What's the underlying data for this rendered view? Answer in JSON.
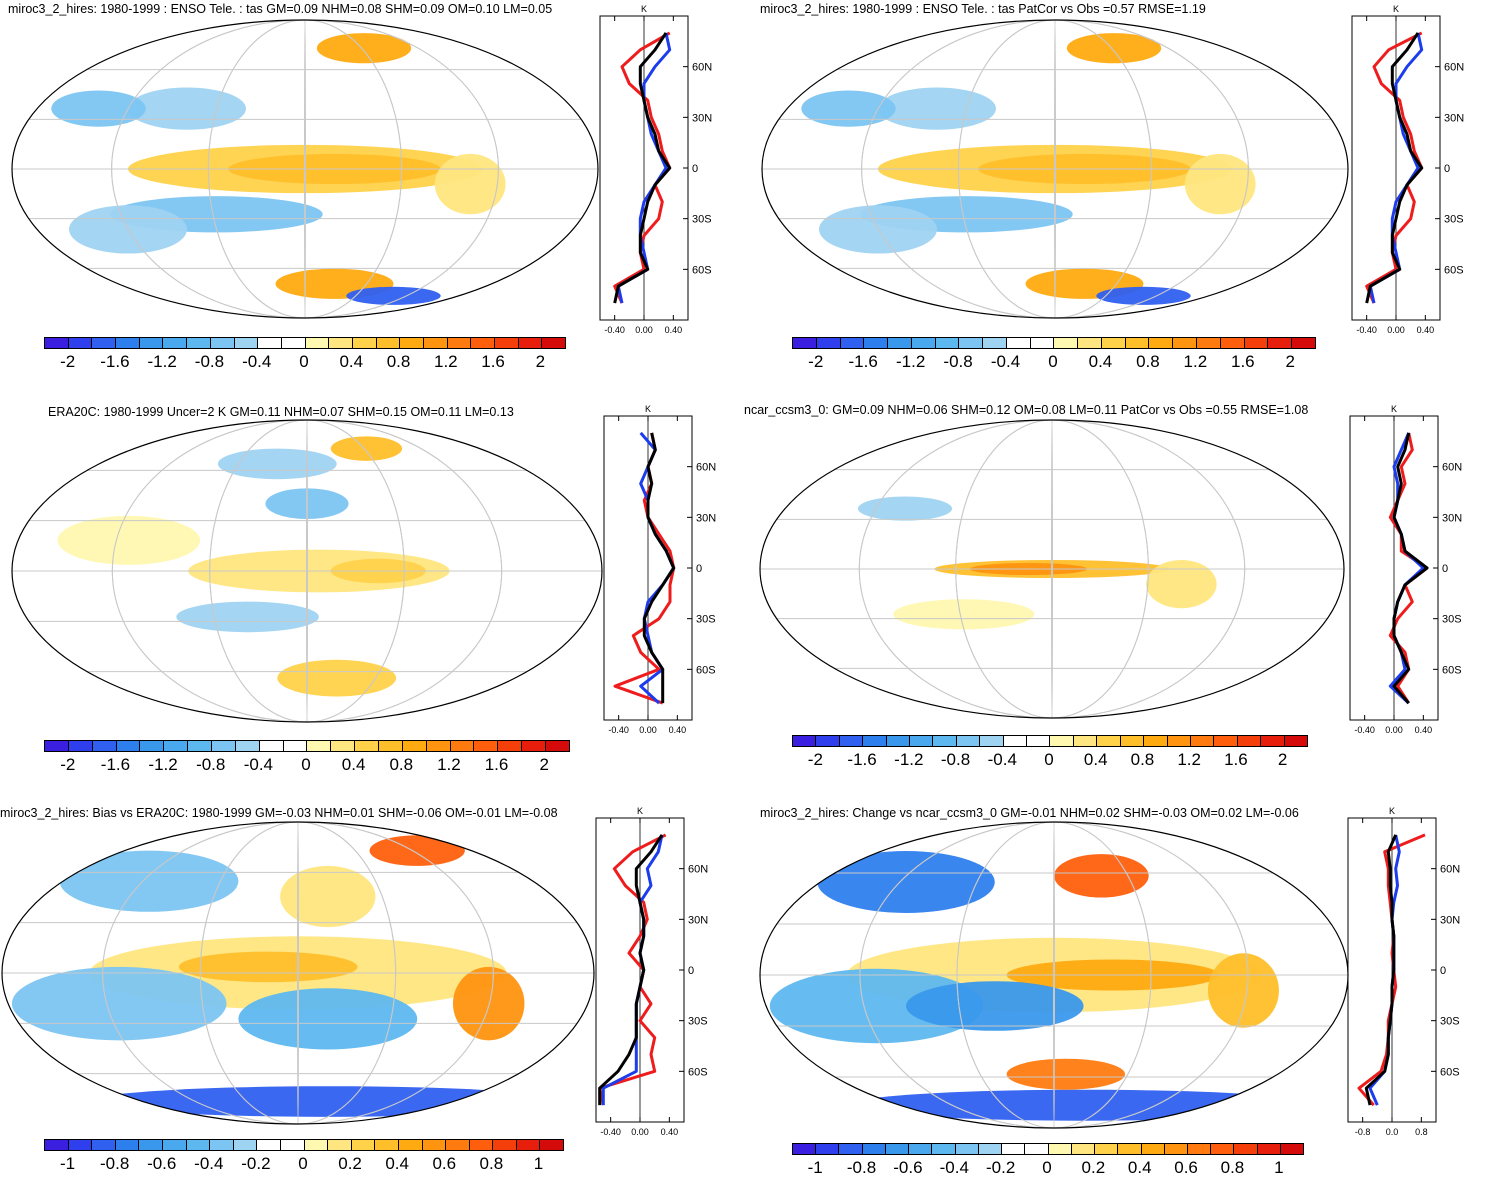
{
  "palettes": {
    "temp": [
      "#3a1fe0",
      "#2f3fee",
      "#2f60f0",
      "#2e7fee",
      "#3a98ec",
      "#4aa9ee",
      "#5eb8f0",
      "#7cc5f2",
      "#9fd3f2",
      "#ffffff",
      "#ffffff",
      "#fff8b0",
      "#ffe680",
      "#ffd24a",
      "#ffbf2a",
      "#ffaa10",
      "#ff9410",
      "#ff7b10",
      "#ff5f0d",
      "#f43f0b",
      "#e61e0b",
      "#d50a0b"
    ]
  },
  "chart_data": [
    {
      "type": "map+zonal-profile",
      "title": "miroc3_2_hires: 1980-1999 : ENSO Tele. : tas GM=0.09 NHM=0.08 SHM=0.09 OM=0.10 LM=0.05",
      "colorbar_labels": [
        "-2",
        "-1.6",
        "-1.2",
        "-0.8",
        "-0.4",
        "0",
        "0.4",
        "0.8",
        "1.2",
        "1.6",
        "2"
      ],
      "profile": {
        "unit": "K",
        "xticks": [
          "-0.40",
          "0.00",
          "0.40"
        ],
        "xlim": [
          -0.6,
          0.6
        ],
        "lat_labels": [
          "60N",
          "30N",
          "0",
          "30S",
          "60S"
        ]
      },
      "series": [
        {
          "name": "red",
          "color": "#ee1c1c",
          "lat": [
            80,
            70,
            60,
            50,
            40,
            30,
            20,
            10,
            0,
            -10,
            -20,
            -30,
            -40,
            -50,
            -60,
            -70,
            -80
          ],
          "values": [
            0.35,
            -0.05,
            -0.3,
            -0.2,
            0.05,
            0.1,
            0.2,
            0.25,
            0.35,
            0.15,
            0.25,
            0.2,
            0.0,
            -0.05,
            0.0,
            -0.4,
            -0.3
          ]
        },
        {
          "name": "blue",
          "color": "#1c3cee",
          "lat": [
            80,
            70,
            60,
            50,
            40,
            30,
            20,
            10,
            0,
            -10,
            -20,
            -30,
            -40,
            -50,
            -60,
            -70,
            -80
          ],
          "values": [
            0.3,
            0.35,
            0.15,
            0.0,
            0.0,
            0.05,
            0.1,
            0.2,
            0.3,
            0.15,
            0.0,
            -0.05,
            -0.05,
            0.0,
            0.05,
            -0.35,
            -0.3
          ]
        },
        {
          "name": "black",
          "color": "#000000",
          "lat": [
            80,
            70,
            60,
            50,
            40,
            30,
            20,
            10,
            0,
            -10,
            -20,
            -30,
            -40,
            -50,
            -60,
            -70,
            -80
          ],
          "values": [
            0.3,
            0.15,
            -0.05,
            -0.05,
            0.0,
            0.05,
            0.15,
            0.2,
            0.35,
            0.15,
            0.05,
            0.0,
            -0.05,
            -0.05,
            0.05,
            -0.35,
            -0.4
          ]
        }
      ]
    },
    {
      "type": "map+zonal-profile",
      "title": "miroc3_2_hires: 1980-1999 : ENSO Tele. : tas PatCor vs Obs =0.57 RMSE=1.19",
      "colorbar_labels": [
        "-2",
        "-1.6",
        "-1.2",
        "-0.8",
        "-0.4",
        "0",
        "0.4",
        "0.8",
        "1.2",
        "1.6",
        "2"
      ],
      "profile": {
        "unit": "K",
        "xticks": [
          "-0.40",
          "0.00",
          "0.40"
        ],
        "xlim": [
          -0.6,
          0.6
        ],
        "lat_labels": [
          "60N",
          "30N",
          "0",
          "30S",
          "60S"
        ]
      },
      "series": [
        {
          "name": "red",
          "color": "#ee1c1c",
          "lat": [
            80,
            70,
            60,
            50,
            40,
            30,
            20,
            10,
            0,
            -10,
            -20,
            -30,
            -40,
            -50,
            -60,
            -70,
            -80
          ],
          "values": [
            0.35,
            -0.1,
            -0.3,
            -0.2,
            0.05,
            0.1,
            0.2,
            0.25,
            0.35,
            0.15,
            0.25,
            0.2,
            0.0,
            -0.05,
            0.0,
            -0.4,
            -0.3
          ]
        },
        {
          "name": "blue",
          "color": "#1c3cee",
          "lat": [
            80,
            70,
            60,
            50,
            40,
            30,
            20,
            10,
            0,
            -10,
            -20,
            -30,
            -40,
            -50,
            -60,
            -70,
            -80
          ],
          "values": [
            0.3,
            0.35,
            0.15,
            0.0,
            0.0,
            0.05,
            0.1,
            0.2,
            0.3,
            0.15,
            0.0,
            -0.05,
            -0.05,
            0.0,
            0.05,
            -0.35,
            -0.3
          ]
        },
        {
          "name": "black",
          "color": "#000000",
          "lat": [
            80,
            70,
            60,
            50,
            40,
            30,
            20,
            10,
            0,
            -10,
            -20,
            -30,
            -40,
            -50,
            -60,
            -70,
            -80
          ],
          "values": [
            0.3,
            0.15,
            -0.05,
            -0.05,
            0.0,
            0.05,
            0.15,
            0.2,
            0.35,
            0.15,
            0.05,
            0.0,
            -0.05,
            -0.05,
            0.05,
            -0.35,
            -0.4
          ]
        }
      ]
    },
    {
      "type": "map+zonal-profile",
      "title": "ERA20C: 1980-1999 Uncer=2 K GM=0.11 NHM=0.07 SHM=0.15 OM=0.11 LM=0.13",
      "colorbar_labels": [
        "-2",
        "-1.6",
        "-1.2",
        "-0.8",
        "-0.4",
        "0",
        "0.4",
        "0.8",
        "1.2",
        "1.6",
        "2"
      ],
      "profile": {
        "unit": "K",
        "xticks": [
          "-0.40",
          "0.00",
          "0.40"
        ],
        "xlim": [
          -0.6,
          0.6
        ],
        "lat_labels": [
          "60N",
          "30N",
          "0",
          "30S",
          "60S"
        ]
      },
      "series": [
        {
          "name": "red",
          "color": "#ee1c1c",
          "lat": [
            80,
            70,
            60,
            50,
            40,
            30,
            20,
            10,
            0,
            -10,
            -20,
            -30,
            -40,
            -50,
            -60,
            -70,
            -80
          ],
          "values": [
            0.05,
            0.1,
            0.0,
            0.05,
            -0.05,
            0.0,
            0.15,
            0.3,
            0.35,
            0.3,
            0.3,
            0.15,
            -0.2,
            -0.1,
            0.15,
            -0.45,
            0.2
          ]
        },
        {
          "name": "blue",
          "color": "#1c3cee",
          "lat": [
            80,
            70,
            60,
            50,
            40,
            30,
            20,
            10,
            0,
            -10,
            -20,
            -30,
            -40,
            -50,
            -60,
            -70,
            -80
          ],
          "values": [
            -0.1,
            0.1,
            0.0,
            -0.1,
            0.0,
            0.0,
            0.1,
            0.25,
            0.35,
            0.2,
            0.0,
            -0.05,
            0.0,
            0.05,
            0.2,
            -0.1,
            0.15
          ]
        },
        {
          "name": "black",
          "color": "#000000",
          "lat": [
            80,
            70,
            60,
            50,
            40,
            30,
            20,
            10,
            0,
            -10,
            -20,
            -30,
            -40,
            -50,
            -60,
            -70,
            -80
          ],
          "values": [
            0.05,
            0.1,
            0.0,
            0.05,
            0.0,
            0.0,
            0.1,
            0.25,
            0.35,
            0.2,
            0.05,
            -0.05,
            -0.05,
            0.05,
            0.2,
            0.2,
            0.2
          ]
        }
      ]
    },
    {
      "type": "map+zonal-profile",
      "title": "ncar_ccsm3_0: GM=0.09 NHM=0.06 SHM=0.12 OM=0.08 LM=0.11 PatCor vs Obs =0.55 RMSE=1.08",
      "colorbar_labels": [
        "-2",
        "-1.6",
        "-1.2",
        "-0.8",
        "-0.4",
        "0",
        "0.4",
        "0.8",
        "1.2",
        "1.6",
        "2"
      ],
      "profile": {
        "unit": "K",
        "xticks": [
          "-0.40",
          "0.00",
          "0.40"
        ],
        "xlim": [
          -0.6,
          0.6
        ],
        "lat_labels": [
          "60N",
          "30N",
          "0",
          "30S",
          "60S"
        ]
      },
      "series": [
        {
          "name": "red",
          "color": "#ee1c1c",
          "lat": [
            80,
            70,
            60,
            50,
            40,
            30,
            20,
            10,
            0,
            -10,
            -20,
            -30,
            -40,
            -50,
            -60,
            -70,
            -80
          ],
          "values": [
            0.2,
            0.25,
            0.1,
            0.15,
            0.05,
            -0.05,
            0.1,
            0.1,
            0.45,
            0.15,
            0.25,
            0.05,
            -0.05,
            0.15,
            0.2,
            0.05,
            0.2
          ]
        },
        {
          "name": "blue",
          "color": "#1c3cee",
          "lat": [
            80,
            70,
            60,
            50,
            40,
            30,
            20,
            10,
            0,
            -10,
            -20,
            -30,
            -40,
            -50,
            -60,
            -70,
            -80
          ],
          "values": [
            0.2,
            0.1,
            0.0,
            0.05,
            0.05,
            0.0,
            0.1,
            0.15,
            0.4,
            0.15,
            0.05,
            0.0,
            0.0,
            0.1,
            0.15,
            -0.05,
            0.2
          ]
        },
        {
          "name": "black",
          "color": "#000000",
          "lat": [
            80,
            70,
            60,
            50,
            40,
            30,
            20,
            10,
            0,
            -10,
            -20,
            -30,
            -40,
            -50,
            -60,
            -70,
            -80
          ],
          "values": [
            0.2,
            0.15,
            0.05,
            0.1,
            0.05,
            0.0,
            0.1,
            0.15,
            0.45,
            0.15,
            0.05,
            0.0,
            0.0,
            0.1,
            0.2,
            0.0,
            0.2
          ]
        }
      ]
    },
    {
      "type": "map+zonal-profile",
      "title": "miroc3_2_hires: Bias vs ERA20C: 1980-1999 GM=-0.03 NHM=0.01 SHM=-0.06 OM=-0.01 LM=-0.08",
      "colorbar_labels": [
        "-1",
        "-0.8",
        "-0.6",
        "-0.4",
        "-0.2",
        "0",
        "0.2",
        "0.4",
        "0.6",
        "0.8",
        "1"
      ],
      "profile": {
        "unit": "K",
        "xticks": [
          "-0.40",
          "0.00",
          "0.40"
        ],
        "xlim": [
          -0.6,
          0.6
        ],
        "lat_labels": [
          "60N",
          "30N",
          "0",
          "30S",
          "60S"
        ]
      },
      "series": [
        {
          "name": "red",
          "color": "#ee1c1c",
          "lat": [
            80,
            70,
            60,
            50,
            40,
            30,
            20,
            10,
            0,
            -10,
            -20,
            -30,
            -40,
            -50,
            -60,
            -70,
            -80
          ],
          "values": [
            0.35,
            -0.1,
            -0.35,
            -0.2,
            0.05,
            0.1,
            0.0,
            -0.15,
            0.05,
            0.0,
            0.15,
            0.0,
            0.2,
            0.15,
            0.2,
            -0.55,
            -0.5
          ]
        },
        {
          "name": "blue",
          "color": "#1c3cee",
          "lat": [
            80,
            70,
            60,
            50,
            40,
            30,
            20,
            10,
            0,
            -10,
            -20,
            -30,
            -40,
            -50,
            -60,
            -70,
            -80
          ],
          "values": [
            0.3,
            0.25,
            0.1,
            0.15,
            0.0,
            0.05,
            0.05,
            0.0,
            0.05,
            0.0,
            -0.05,
            -0.05,
            -0.05,
            -0.05,
            -0.05,
            -0.5,
            -0.5
          ]
        },
        {
          "name": "black",
          "color": "#000000",
          "lat": [
            80,
            70,
            60,
            50,
            40,
            30,
            20,
            10,
            0,
            -10,
            -20,
            -30,
            -40,
            -50,
            -60,
            -70,
            -80
          ],
          "values": [
            0.3,
            0.15,
            -0.05,
            -0.05,
            0.0,
            0.05,
            0.05,
            0.0,
            0.05,
            0.0,
            -0.05,
            -0.05,
            -0.05,
            -0.15,
            -0.3,
            -0.55,
            -0.55
          ]
        }
      ]
    },
    {
      "type": "map+zonal-profile",
      "title": "miroc3_2_hires: Change vs ncar_ccsm3_0 GM=-0.01 NHM=0.02 SHM=-0.03 OM=0.02 LM=-0.06",
      "colorbar_labels": [
        "-1",
        "-0.8",
        "-0.6",
        "-0.4",
        "-0.2",
        "0",
        "0.2",
        "0.4",
        "0.6",
        "0.8",
        "1"
      ],
      "profile": {
        "unit": "K",
        "xticks": [
          "-0.8",
          "0.0",
          "0.8"
        ],
        "xlim": [
          -1.2,
          1.2
        ],
        "lat_labels": [
          "60N",
          "30N",
          "0",
          "30S",
          "60S"
        ]
      },
      "series": [
        {
          "name": "red",
          "color": "#ee1c1c",
          "lat": [
            80,
            70,
            60,
            50,
            40,
            30,
            20,
            10,
            0,
            -10,
            -20,
            -30,
            -40,
            -50,
            -60,
            -70,
            -80
          ],
          "values": [
            0.9,
            -0.2,
            -0.1,
            -0.1,
            -0.05,
            0.0,
            0.05,
            0.0,
            0.05,
            0.1,
            0.0,
            -0.1,
            -0.1,
            -0.15,
            -0.3,
            -0.9,
            -0.5
          ]
        },
        {
          "name": "blue",
          "color": "#1c3cee",
          "lat": [
            80,
            70,
            60,
            50,
            40,
            30,
            20,
            10,
            0,
            -10,
            -20,
            -30,
            -40,
            -50,
            -60,
            -70,
            -80
          ],
          "values": [
            0.1,
            0.2,
            0.1,
            0.15,
            0.05,
            0.0,
            0.05,
            0.05,
            0.05,
            0.0,
            0.0,
            -0.05,
            -0.1,
            -0.1,
            -0.2,
            -0.6,
            -0.4
          ]
        },
        {
          "name": "black",
          "color": "#000000",
          "lat": [
            80,
            70,
            60,
            50,
            40,
            30,
            20,
            10,
            0,
            -10,
            -20,
            -30,
            -40,
            -50,
            -60,
            -70,
            -80
          ],
          "values": [
            0.1,
            -0.1,
            -0.05,
            -0.05,
            0.0,
            0.0,
            0.05,
            0.05,
            0.05,
            0.0,
            0.0,
            -0.05,
            -0.1,
            -0.1,
            -0.2,
            -0.7,
            -0.6
          ]
        }
      ]
    }
  ]
}
